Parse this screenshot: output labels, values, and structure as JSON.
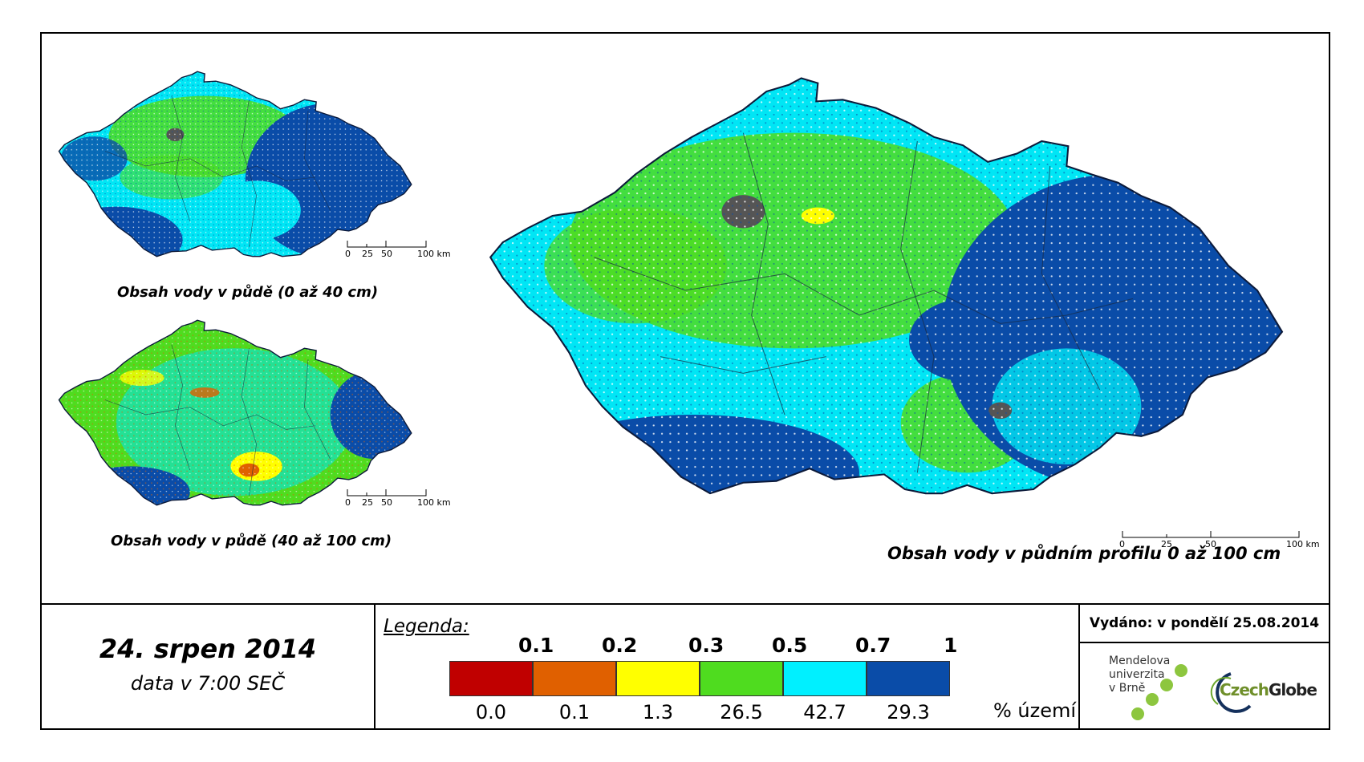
{
  "maps": {
    "top_left_caption": "Obsah vody v půdě (0 až 40 cm)",
    "bottom_left_caption": "Obsah vody v půdě (40 až 100 cm)",
    "main_caption": "Obsah vody v půdním profilu 0 až 100 cm",
    "scale_labels": [
      "0",
      "25",
      "50",
      "100 km"
    ]
  },
  "date": {
    "title": "24. srpen 2014",
    "subtitle": "data v 7:00 SEČ"
  },
  "legend": {
    "title": "Legenda:",
    "thresholds": [
      "0.1",
      "0.2",
      "0.3",
      "0.5",
      "0.7",
      "1"
    ],
    "classes": [
      {
        "color": "#c00000",
        "percent": "0.0"
      },
      {
        "color": "#e06000",
        "percent": "0.1"
      },
      {
        "color": "#ffff00",
        "percent": "1.3"
      },
      {
        "color": "#4fdc1f",
        "percent": "26.5"
      },
      {
        "color": "#00f0ff",
        "percent": "42.7"
      },
      {
        "color": "#0a4ca8",
        "percent": "29.3"
      }
    ],
    "unit": "% území"
  },
  "info": {
    "issued": "Vydáno: v pondělí 25.08.2014",
    "mendel_lines": [
      "Mendelova",
      "univerzita",
      "v Brně"
    ],
    "czechglobe_a": "Czech",
    "czechglobe_b": "Globe"
  }
}
